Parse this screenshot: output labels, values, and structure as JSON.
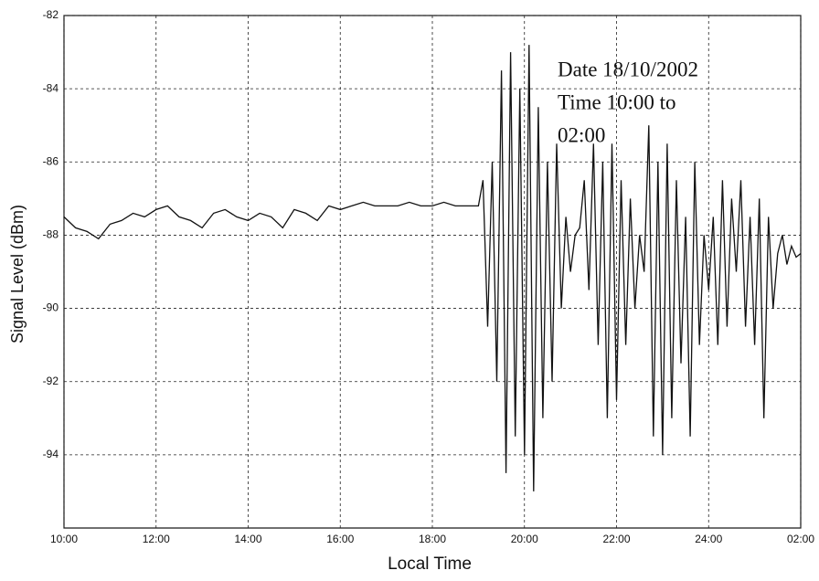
{
  "chart_data": {
    "type": "line",
    "x_label": "Local Time",
    "y_label": "Signal Level (dBm)",
    "annotation": [
      "Date 18/10/2002",
      "Time 10:00 to",
      "02:00"
    ],
    "x": [
      10,
      10.25,
      10.5,
      10.75,
      11,
      11.25,
      11.5,
      11.75,
      12,
      12.25,
      12.5,
      12.75,
      13,
      13.25,
      13.5,
      13.75,
      14,
      14.25,
      14.5,
      14.75,
      15,
      15.25,
      15.5,
      15.75,
      16,
      16.25,
      16.5,
      16.75,
      17,
      17.25,
      17.5,
      17.75,
      18,
      18.25,
      18.5,
      18.75,
      19,
      19.1,
      19.2,
      19.3,
      19.4,
      19.5,
      19.6,
      19.7,
      19.8,
      19.9,
      20,
      20.1,
      20.2,
      20.3,
      20.4,
      20.5,
      20.6,
      20.7,
      20.8,
      20.9,
      21,
      21.1,
      21.2,
      21.3,
      21.4,
      21.5,
      21.6,
      21.7,
      21.8,
      21.9,
      22,
      22.1,
      22.2,
      22.3,
      22.4,
      22.5,
      22.6,
      22.7,
      22.8,
      22.9,
      23,
      23.1,
      23.2,
      23.3,
      23.4,
      23.5,
      23.6,
      23.7,
      23.8,
      23.9,
      24,
      24.1,
      24.2,
      24.3,
      24.4,
      24.5,
      24.6,
      24.7,
      24.8,
      24.9,
      25,
      25.1,
      25.2,
      25.3,
      25.4,
      25.5,
      25.6,
      25.7,
      25.8,
      25.9,
      26
    ],
    "series": [
      {
        "color": "#111111",
        "values": [
          -87.5,
          -87.8,
          -87.9,
          -88.1,
          -87.7,
          -87.6,
          -87.4,
          -87.5,
          -87.3,
          -87.2,
          -87.5,
          -87.6,
          -87.8,
          -87.4,
          -87.3,
          -87.5,
          -87.6,
          -87.4,
          -87.5,
          -87.8,
          -87.3,
          -87.4,
          -87.6,
          -87.2,
          -87.3,
          -87.2,
          -87.1,
          -87.2,
          -87.2,
          -87.2,
          -87.1,
          -87.2,
          -87.2,
          -87.1,
          -87.2,
          -87.2,
          -87.2,
          -86.5,
          -90.5,
          -86.0,
          -92.0,
          -83.5,
          -94.5,
          -83.0,
          -93.5,
          -84.0,
          -94.0,
          -82.8,
          -95.0,
          -84.5,
          -93.0,
          -86.0,
          -92.0,
          -85.5,
          -90.0,
          -87.5,
          -89.0,
          -88.0,
          -87.8,
          -86.5,
          -89.5,
          -85.5,
          -91.0,
          -86.0,
          -93.0,
          -85.5,
          -92.5,
          -86.5,
          -91.0,
          -87.0,
          -90.0,
          -88.0,
          -89.0,
          -85.0,
          -93.5,
          -86.0,
          -94.0,
          -85.5,
          -93.0,
          -86.5,
          -91.5,
          -87.5,
          -93.5,
          -86.0,
          -91.0,
          -88.0,
          -89.5,
          -87.5,
          -91.0,
          -86.5,
          -90.5,
          -87.0,
          -89.0,
          -86.5,
          -90.5,
          -87.5,
          -91.0,
          -87.0,
          -93.0,
          -87.5,
          -90.0,
          -88.5,
          -88.0,
          -88.8,
          -88.3,
          -88.6,
          -88.5
        ]
      }
    ],
    "xlim": [
      10,
      26
    ],
    "xticks": [
      {
        "value": 10,
        "label": "10:00"
      },
      {
        "value": 12,
        "label": "12:00"
      },
      {
        "value": 14,
        "label": "14:00"
      },
      {
        "value": 16,
        "label": "16:00"
      },
      {
        "value": 18,
        "label": "18:00"
      },
      {
        "value": 20,
        "label": "20:00"
      },
      {
        "value": 22,
        "label": "22:00"
      },
      {
        "value": 24,
        "label": "24:00"
      },
      {
        "value": 26,
        "label": "02:00"
      }
    ],
    "ylim": [
      -96,
      -82
    ],
    "yticks": [
      -94,
      -92,
      -90,
      -88,
      -86,
      -84,
      -82
    ],
    "grid": true
  }
}
